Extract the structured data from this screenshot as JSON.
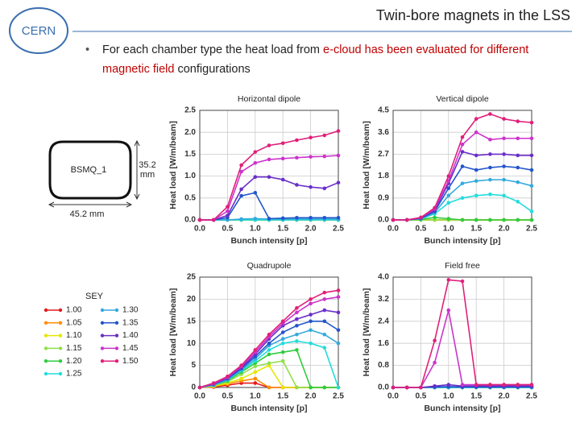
{
  "slide": {
    "logo": "CERN",
    "title": "Twin-bore magnets in the LSS",
    "bullet": [
      {
        "text": "For each chamber type the heat load from ",
        "highlight": false
      },
      {
        "text": "e-cloud has been evaluated for different magnetic field",
        "highlight": true
      },
      {
        "text": " configurations",
        "highlight": false
      }
    ]
  },
  "diagram": {
    "label": "BSMQ_1",
    "height_label": "35.2",
    "height_unit": "mm",
    "width_label": "45.2 mm"
  },
  "legend": {
    "title": "SEY",
    "entries": [
      {
        "name": "1.00",
        "color": "#e41a1c"
      },
      {
        "name": "1.05",
        "color": "#ff8c00"
      },
      {
        "name": "1.10",
        "color": "#e6e600"
      },
      {
        "name": "1.15",
        "color": "#8ee04a"
      },
      {
        "name": "1.20",
        "color": "#2ecc40"
      },
      {
        "name": "1.25",
        "color": "#22dddd"
      },
      {
        "name": "1.30",
        "color": "#33aadd"
      },
      {
        "name": "1.35",
        "color": "#2255cc"
      },
      {
        "name": "1.40",
        "color": "#6a2fc8"
      },
      {
        "name": "1.45",
        "color": "#cc33cc"
      },
      {
        "name": "1.50",
        "color": "#e0207a"
      }
    ]
  },
  "chart_data": [
    {
      "type": "line",
      "title": "Horizontal dipole",
      "x_label": "Bunch intensity [p]",
      "y_label": "Heat load [W/m/beam]",
      "grid": true,
      "x": [
        0,
        0.25,
        0.5,
        0.75,
        1.0,
        1.25,
        1.5,
        1.75,
        2.0,
        2.25,
        2.5
      ],
      "xlim": [
        0,
        2.5
      ],
      "xticks": [
        {
          "value": 0,
          "label": "0.0"
        },
        0.5,
        {
          "value": 1,
          "label": "1.0"
        },
        1.5,
        {
          "value": 2,
          "label": "2.0"
        },
        2.5
      ],
      "ylim": [
        0,
        2.5
      ],
      "yticks": [
        {
          "value": 0,
          "label": "0.0"
        },
        0.5,
        {
          "value": 1,
          "label": "1.0"
        },
        1.5,
        {
          "value": 2,
          "label": "2.0"
        },
        2.5
      ],
      "series": [
        {
          "color": "#e41a1c",
          "values": [
            0,
            0,
            0,
            0,
            0,
            0,
            0,
            0,
            0,
            0,
            0
          ]
        },
        {
          "color": "#ff8c00",
          "values": [
            0,
            0,
            0,
            0,
            0,
            0,
            0,
            0,
            0,
            0,
            0
          ]
        },
        {
          "color": "#e6e600",
          "values": [
            0,
            0,
            0,
            0,
            0,
            0,
            0,
            0,
            0,
            0,
            0
          ]
        },
        {
          "color": "#8ee04a",
          "values": [
            0,
            0,
            0,
            0,
            0,
            0,
            0,
            0,
            0,
            0,
            0
          ]
        },
        {
          "color": "#2ecc40",
          "values": [
            0,
            0,
            0,
            0,
            0,
            0,
            0,
            0,
            0,
            0,
            0
          ]
        },
        {
          "color": "#22dddd",
          "values": [
            0,
            0,
            0,
            0,
            0,
            0,
            0,
            0,
            0,
            0,
            0
          ]
        },
        {
          "color": "#33aadd",
          "values": [
            0,
            0,
            0,
            0.02,
            0.03,
            0.02,
            0.02,
            0.02,
            0.02,
            0.02,
            0.02
          ]
        },
        {
          "color": "#2255cc",
          "values": [
            0,
            0,
            0.05,
            0.55,
            0.62,
            0.03,
            0.04,
            0.05,
            0.05,
            0.05,
            0.05
          ]
        },
        {
          "color": "#6a2fc8",
          "values": [
            0,
            0,
            0.1,
            0.7,
            0.98,
            0.98,
            0.92,
            0.8,
            0.75,
            0.72,
            0.85
          ]
        },
        {
          "color": "#cc33cc",
          "values": [
            0,
            0,
            0.2,
            1.1,
            1.3,
            1.38,
            1.4,
            1.42,
            1.44,
            1.45,
            1.47
          ]
        },
        {
          "color": "#e0207a",
          "values": [
            0,
            0,
            0.3,
            1.25,
            1.55,
            1.7,
            1.75,
            1.82,
            1.88,
            1.93,
            2.03
          ]
        }
      ]
    },
    {
      "type": "line",
      "title": "Vertical dipole",
      "x_label": "Bunch intensity [p]",
      "y_label": "Heat load [W/m/beam]",
      "grid": true,
      "x": [
        0,
        0.25,
        0.5,
        0.75,
        1.0,
        1.25,
        1.5,
        1.75,
        2.0,
        2.25,
        2.5
      ],
      "xlim": [
        0,
        2.5
      ],
      "xticks": [
        {
          "value": 0,
          "label": "0.0"
        },
        0.5,
        {
          "value": 1,
          "label": "1.0"
        },
        1.5,
        {
          "value": 2,
          "label": "2.0"
        },
        2.5
      ],
      "ylim": [
        0,
        4.5
      ],
      "yticks": [
        {
          "value": 0,
          "label": "0.0"
        },
        0.9,
        1.8,
        2.7,
        3.6,
        4.5
      ],
      "series": [
        {
          "color": "#e41a1c",
          "values": [
            0,
            0,
            0,
            0,
            0,
            0,
            0,
            0,
            0,
            0,
            0
          ]
        },
        {
          "color": "#ff8c00",
          "values": [
            0,
            0,
            0,
            0,
            0,
            0,
            0,
            0,
            0,
            0,
            0
          ]
        },
        {
          "color": "#e6e600",
          "values": [
            0,
            0,
            0,
            0,
            0,
            0,
            0,
            0,
            0,
            0,
            0
          ]
        },
        {
          "color": "#8ee04a",
          "values": [
            0,
            0,
            0,
            0,
            0,
            0,
            0,
            0,
            0,
            0,
            0
          ]
        },
        {
          "color": "#2ecc40",
          "values": [
            0,
            0,
            0.02,
            0.1,
            0.05,
            0,
            0,
            0,
            0,
            0,
            0
          ]
        },
        {
          "color": "#22dddd",
          "values": [
            0,
            0,
            0.04,
            0.25,
            0.7,
            0.9,
            1.0,
            1.05,
            1.0,
            0.75,
            0.35
          ]
        },
        {
          "color": "#33aadd",
          "values": [
            0,
            0,
            0.05,
            0.3,
            1.0,
            1.5,
            1.6,
            1.65,
            1.65,
            1.55,
            1.4
          ]
        },
        {
          "color": "#2255cc",
          "values": [
            0,
            0,
            0.06,
            0.35,
            1.3,
            2.2,
            2.05,
            2.15,
            2.2,
            2.15,
            2.05
          ]
        },
        {
          "color": "#6a2fc8",
          "values": [
            0,
            0,
            0.08,
            0.4,
            1.5,
            2.8,
            2.65,
            2.7,
            2.7,
            2.65,
            2.65
          ]
        },
        {
          "color": "#cc33cc",
          "values": [
            0,
            0,
            0.1,
            0.45,
            1.6,
            3.1,
            3.6,
            3.3,
            3.35,
            3.35,
            3.35
          ]
        },
        {
          "color": "#e0207a",
          "values": [
            0,
            0,
            0.1,
            0.5,
            1.8,
            3.4,
            4.15,
            4.35,
            4.15,
            4.05,
            4.0
          ]
        }
      ]
    },
    {
      "type": "line",
      "title": "Quadrupole",
      "x_label": "Bunch intensity [p]",
      "y_label": "Heat load [W/m/beam]",
      "grid": true,
      "x": [
        0,
        0.25,
        0.5,
        0.75,
        1.0,
        1.25,
        1.5,
        1.75,
        2.0,
        2.25,
        2.5
      ],
      "xlim": [
        0,
        2.5
      ],
      "xticks": [
        {
          "value": 0,
          "label": "0.0"
        },
        0.5,
        {
          "value": 1,
          "label": "1.0"
        },
        1.5,
        {
          "value": 2,
          "label": "2.0"
        },
        2.5
      ],
      "ylim": [
        0,
        25
      ],
      "yticks": [
        0,
        5,
        10,
        15,
        20,
        25
      ],
      "series": [
        {
          "color": "#e41a1c",
          "values": [
            0,
            0.1,
            0.5,
            1,
            1,
            0,
            0,
            0,
            0,
            0,
            0
          ]
        },
        {
          "color": "#ff8c00",
          "values": [
            0,
            0.2,
            0.8,
            1.5,
            2,
            0,
            0,
            0,
            0,
            0,
            0
          ]
        },
        {
          "color": "#e6e600",
          "values": [
            0,
            0.3,
            1,
            2,
            3.5,
            5,
            0,
            0,
            0,
            0,
            0
          ]
        },
        {
          "color": "#8ee04a",
          "values": [
            0,
            0.4,
            1.3,
            3,
            4.8,
            5.5,
            6,
            0,
            0,
            0,
            0
          ]
        },
        {
          "color": "#2ecc40",
          "values": [
            0,
            0.5,
            1.5,
            3.5,
            5.5,
            7.5,
            8,
            8.5,
            0,
            0,
            0
          ]
        },
        {
          "color": "#22dddd",
          "values": [
            0,
            0.5,
            1.7,
            3.8,
            6,
            8.5,
            10,
            10.5,
            10,
            9,
            0
          ]
        },
        {
          "color": "#33aadd",
          "values": [
            0,
            0.6,
            1.8,
            4,
            6.5,
            9.5,
            11,
            12,
            13,
            12,
            10
          ]
        },
        {
          "color": "#2255cc",
          "values": [
            0,
            0.7,
            2,
            4.3,
            7,
            10,
            12.5,
            14,
            15,
            15,
            13
          ]
        },
        {
          "color": "#6a2fc8",
          "values": [
            0,
            0.8,
            2.2,
            4.5,
            7.5,
            11,
            14,
            15.5,
            16.5,
            17.5,
            17
          ]
        },
        {
          "color": "#cc33cc",
          "values": [
            0,
            0.9,
            2.3,
            4.8,
            8,
            11.5,
            14.5,
            17,
            19,
            20,
            20.5
          ]
        },
        {
          "color": "#e0207a",
          "values": [
            0,
            1,
            2.5,
            5,
            8.5,
            12,
            15,
            18,
            20,
            21.5,
            22
          ]
        }
      ]
    },
    {
      "type": "line",
      "title": "Field free",
      "x_label": "Bunch intensity [p]",
      "y_label": "Heat load [W/m/beam]",
      "grid": true,
      "x": [
        0,
        0.25,
        0.5,
        0.75,
        1.0,
        1.25,
        1.5,
        1.75,
        2.0,
        2.25,
        2.5
      ],
      "xlim": [
        0,
        2.5
      ],
      "xticks": [
        {
          "value": 0,
          "label": "0.0"
        },
        0.5,
        {
          "value": 1,
          "label": "1.0"
        },
        1.5,
        {
          "value": 2,
          "label": "2.0"
        },
        2.5
      ],
      "ylim": [
        0,
        4
      ],
      "yticks": [
        {
          "value": 0,
          "label": "0.0"
        },
        0.8,
        1.6,
        2.4,
        3.2,
        {
          "value": 4,
          "label": "4.0"
        }
      ],
      "series": [
        {
          "color": "#e41a1c",
          "values": [
            0,
            0,
            0,
            0,
            0,
            0,
            0,
            0,
            0,
            0,
            0
          ]
        },
        {
          "color": "#ff8c00",
          "values": [
            0,
            0,
            0,
            0,
            0,
            0,
            0,
            0,
            0,
            0,
            0
          ]
        },
        {
          "color": "#e6e600",
          "values": [
            0,
            0,
            0,
            0,
            0,
            0,
            0,
            0,
            0,
            0,
            0
          ]
        },
        {
          "color": "#8ee04a",
          "values": [
            0,
            0,
            0,
            0,
            0,
            0,
            0,
            0,
            0,
            0,
            0
          ]
        },
        {
          "color": "#2ecc40",
          "values": [
            0,
            0,
            0,
            0,
            0,
            0,
            0,
            0,
            0,
            0,
            0
          ]
        },
        {
          "color": "#22dddd",
          "values": [
            0,
            0,
            0,
            0,
            0,
            0,
            0,
            0,
            0,
            0,
            0
          ]
        },
        {
          "color": "#33aadd",
          "values": [
            0,
            0,
            0,
            0,
            0,
            0,
            0,
            0,
            0,
            0,
            0
          ]
        },
        {
          "color": "#2255cc",
          "values": [
            0,
            0,
            0,
            0.02,
            0.03,
            0.02,
            0.02,
            0.02,
            0.02,
            0.02,
            0.02
          ]
        },
        {
          "color": "#6a2fc8",
          "values": [
            0,
            0,
            0,
            0.05,
            0.1,
            0.05,
            0.05,
            0.05,
            0.05,
            0.05,
            0.05
          ]
        },
        {
          "color": "#cc33cc",
          "values": [
            0,
            0,
            0,
            0.9,
            2.8,
            0.1,
            0.1,
            0.1,
            0.1,
            0.1,
            0.1
          ]
        },
        {
          "color": "#e0207a",
          "values": [
            0,
            0,
            0,
            1.7,
            3.9,
            3.85,
            0.1,
            0.1,
            0.1,
            0.1,
            0.1
          ]
        }
      ]
    }
  ]
}
